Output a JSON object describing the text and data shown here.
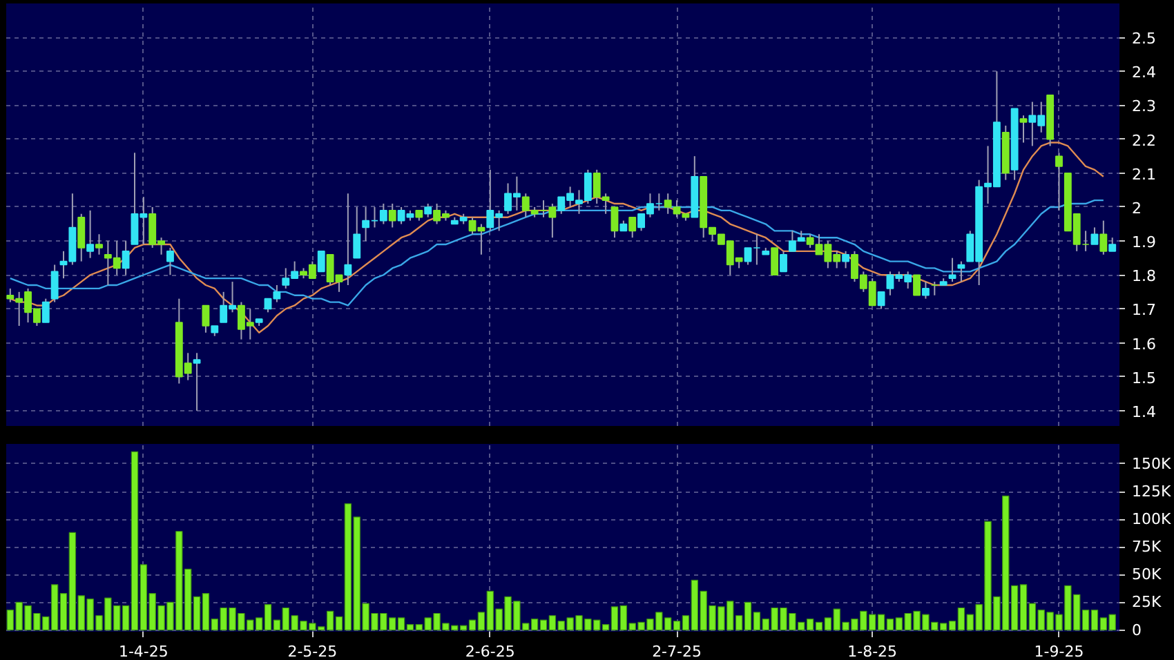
{
  "chart_data": [
    {
      "type": "candlestick",
      "categories": [
        null,
        null,
        null,
        null,
        null,
        null,
        null,
        null,
        null,
        null,
        null,
        null,
        null,
        null,
        null,
        null,
        null,
        null,
        null,
        null,
        null,
        null,
        null,
        null,
        null,
        null,
        null,
        null,
        null,
        null,
        null,
        null,
        null,
        null,
        null,
        null,
        null,
        null,
        null,
        null,
        null,
        null,
        null,
        null,
        null,
        null,
        null,
        null,
        null,
        null,
        null,
        null,
        null,
        null,
        null,
        null,
        null,
        null,
        null,
        null,
        null,
        null,
        null,
        null,
        null,
        null,
        null,
        null,
        null,
        null,
        null,
        null,
        null,
        null,
        null,
        null,
        null,
        null,
        null,
        null,
        null,
        null,
        null,
        null,
        null,
        null,
        null,
        null,
        null,
        null,
        null,
        null,
        null,
        null,
        null,
        null,
        null,
        null,
        null,
        null,
        null,
        null,
        null,
        null,
        null,
        null,
        null,
        null,
        null,
        null,
        null,
        null,
        null,
        null,
        null,
        null,
        null,
        null,
        null,
        null,
        null,
        null,
        null,
        null,
        null
      ],
      "ohlc": [
        [
          1.74,
          1.76,
          1.72,
          1.73
        ],
        [
          1.73,
          1.75,
          1.65,
          1.72
        ],
        [
          1.75,
          1.76,
          1.66,
          1.69
        ],
        [
          1.7,
          1.7,
          1.65,
          1.66
        ],
        [
          1.66,
          1.73,
          1.66,
          1.72
        ],
        [
          1.73,
          1.83,
          1.72,
          1.81
        ],
        [
          1.83,
          1.87,
          1.79,
          1.84
        ],
        [
          1.84,
          2.04,
          1.83,
          1.94
        ],
        [
          1.97,
          1.98,
          1.84,
          1.88
        ],
        [
          1.87,
          1.99,
          1.85,
          1.89
        ],
        [
          1.89,
          1.92,
          1.86,
          1.88
        ],
        [
          1.86,
          1.9,
          1.77,
          1.85
        ],
        [
          1.85,
          1.9,
          1.8,
          1.82
        ],
        [
          1.82,
          1.9,
          1.8,
          1.87
        ],
        [
          1.89,
          2.16,
          1.89,
          1.98
        ],
        [
          1.97,
          2.03,
          1.89,
          1.98
        ],
        [
          1.98,
          2.0,
          1.88,
          1.89
        ],
        [
          1.9,
          1.91,
          1.86,
          1.89
        ],
        [
          1.84,
          1.88,
          1.8,
          1.87
        ],
        [
          1.66,
          1.73,
          1.48,
          1.5
        ],
        [
          1.54,
          1.57,
          1.49,
          1.51
        ],
        [
          1.54,
          1.57,
          1.4,
          1.55
        ],
        [
          1.71,
          1.71,
          1.63,
          1.65
        ],
        [
          1.63,
          1.65,
          1.62,
          1.65
        ],
        [
          1.66,
          1.75,
          1.66,
          1.71
        ],
        [
          1.7,
          1.78,
          1.69,
          1.71
        ],
        [
          1.71,
          1.72,
          1.61,
          1.64
        ],
        [
          1.66,
          1.7,
          1.61,
          1.65
        ],
        [
          1.66,
          1.67,
          1.65,
          1.67
        ],
        [
          1.7,
          1.73,
          1.69,
          1.73
        ],
        [
          1.73,
          1.77,
          1.72,
          1.75
        ],
        [
          1.77,
          1.82,
          1.76,
          1.79
        ],
        [
          1.79,
          1.84,
          1.79,
          1.81
        ],
        [
          1.81,
          1.82,
          1.79,
          1.8
        ],
        [
          1.83,
          1.84,
          1.79,
          1.79
        ],
        [
          1.81,
          1.87,
          1.81,
          1.87
        ],
        [
          1.86,
          1.86,
          1.77,
          1.78
        ],
        [
          1.8,
          1.8,
          1.75,
          1.78
        ],
        [
          1.8,
          2.04,
          1.77,
          1.83
        ],
        [
          1.85,
          2.0,
          1.85,
          1.92
        ],
        [
          1.94,
          2.0,
          1.9,
          1.96
        ],
        [
          1.96,
          2.0,
          1.94,
          1.96
        ],
        [
          1.96,
          2.01,
          1.95,
          1.99
        ],
        [
          1.99,
          2.01,
          1.94,
          1.96
        ],
        [
          1.96,
          2.0,
          1.95,
          1.99
        ],
        [
          1.97,
          1.99,
          1.96,
          1.98
        ],
        [
          1.99,
          1.99,
          1.96,
          1.97
        ],
        [
          1.98,
          2.01,
          1.97,
          2.0
        ],
        [
          1.99,
          2.01,
          1.95,
          1.96
        ],
        [
          1.98,
          1.99,
          1.96,
          1.97
        ],
        [
          1.95,
          1.97,
          1.95,
          1.96
        ],
        [
          1.96,
          1.98,
          1.95,
          1.97
        ],
        [
          1.96,
          1.97,
          1.92,
          1.93
        ],
        [
          1.94,
          1.95,
          1.86,
          1.93
        ],
        [
          1.94,
          2.11,
          1.93,
          1.99
        ],
        [
          1.97,
          1.99,
          1.93,
          1.98
        ],
        [
          1.99,
          2.07,
          1.98,
          2.04
        ],
        [
          2.03,
          2.09,
          1.99,
          2.04
        ],
        [
          2.03,
          2.04,
          1.97,
          1.99
        ],
        [
          1.99,
          2.0,
          1.97,
          1.98
        ],
        [
          1.99,
          2.02,
          1.97,
          1.99
        ],
        [
          2.0,
          2.01,
          1.91,
          1.97
        ],
        [
          1.99,
          2.03,
          1.98,
          2.03
        ],
        [
          2.02,
          2.06,
          2.0,
          2.04
        ],
        [
          2.01,
          2.05,
          1.98,
          2.02
        ],
        [
          2.02,
          2.11,
          2.01,
          2.1
        ],
        [
          2.1,
          2.11,
          2.01,
          2.03
        ],
        [
          2.03,
          2.04,
          1.98,
          2.02
        ],
        [
          2.0,
          2.0,
          1.91,
          1.93
        ],
        [
          1.93,
          1.96,
          1.93,
          1.95
        ],
        [
          1.97,
          1.97,
          1.91,
          1.93
        ],
        [
          1.94,
          1.98,
          1.93,
          1.98
        ],
        [
          1.98,
          2.04,
          1.97,
          2.01
        ],
        [
          2.01,
          2.04,
          1.99,
          2.01
        ],
        [
          2.02,
          2.04,
          1.98,
          2.0
        ],
        [
          2.0,
          2.02,
          1.97,
          1.98
        ],
        [
          1.98,
          1.98,
          1.96,
          1.97
        ],
        [
          1.97,
          2.15,
          1.97,
          2.09
        ],
        [
          2.09,
          2.09,
          1.91,
          1.94
        ],
        [
          1.94,
          1.94,
          1.9,
          1.92
        ],
        [
          1.92,
          1.92,
          1.89,
          1.89
        ],
        [
          1.9,
          1.9,
          1.8,
          1.83
        ],
        [
          1.85,
          1.85,
          1.82,
          1.84
        ],
        [
          1.84,
          1.88,
          1.83,
          1.88
        ],
        [
          1.88,
          1.92,
          1.83,
          1.88
        ],
        [
          1.86,
          1.88,
          1.86,
          1.87
        ],
        [
          1.88,
          1.88,
          1.8,
          1.8
        ],
        [
          1.81,
          1.87,
          1.81,
          1.86
        ],
        [
          1.87,
          1.93,
          1.87,
          1.9
        ],
        [
          1.9,
          1.93,
          1.9,
          1.91
        ],
        [
          1.91,
          1.92,
          1.88,
          1.89
        ],
        [
          1.89,
          1.92,
          1.86,
          1.86
        ],
        [
          1.89,
          1.9,
          1.82,
          1.84
        ],
        [
          1.86,
          1.87,
          1.82,
          1.84
        ],
        [
          1.84,
          1.87,
          1.82,
          1.86
        ],
        [
          1.86,
          1.87,
          1.78,
          1.79
        ],
        [
          1.8,
          1.81,
          1.75,
          1.76
        ],
        [
          1.78,
          1.79,
          1.71,
          1.71
        ],
        [
          1.71,
          1.75,
          1.7,
          1.75
        ],
        [
          1.76,
          1.81,
          1.74,
          1.8
        ],
        [
          1.79,
          1.81,
          1.78,
          1.8
        ],
        [
          1.78,
          1.81,
          1.76,
          1.8
        ],
        [
          1.8,
          1.8,
          1.74,
          1.74
        ],
        [
          1.74,
          1.78,
          1.73,
          1.76
        ],
        [
          1.77,
          1.78,
          1.74,
          1.77
        ],
        [
          1.77,
          1.79,
          1.77,
          1.78
        ],
        [
          1.79,
          1.85,
          1.78,
          1.8
        ],
        [
          1.82,
          1.84,
          1.78,
          1.83
        ],
        [
          1.84,
          1.93,
          1.84,
          1.92
        ],
        [
          1.84,
          2.08,
          1.77,
          2.06
        ],
        [
          2.06,
          2.18,
          2.01,
          2.07
        ],
        [
          2.06,
          2.4,
          2.06,
          2.25
        ],
        [
          2.22,
          2.24,
          2.08,
          2.1
        ],
        [
          2.11,
          2.29,
          2.08,
          2.29
        ],
        [
          2.26,
          2.27,
          2.19,
          2.25
        ],
        [
          2.25,
          2.31,
          2.18,
          2.27
        ],
        [
          2.24,
          2.31,
          2.22,
          2.27
        ],
        [
          2.33,
          2.33,
          2.18,
          2.2
        ],
        [
          2.15,
          2.16,
          1.99,
          2.12
        ],
        [
          2.1,
          2.1,
          1.93,
          1.93
        ],
        [
          1.98,
          1.98,
          1.87,
          1.89
        ],
        [
          1.89,
          1.93,
          1.87,
          1.89
        ],
        [
          1.89,
          1.94,
          1.89,
          1.92
        ],
        [
          1.92,
          1.96,
          1.86,
          1.87
        ],
        [
          1.87,
          1.91,
          1.87,
          1.89
        ]
      ],
      "colors": [
        "#7ee823",
        "#7ee823",
        "#7ee823",
        "#7ee823",
        "#33e4f4",
        "#33e4f4",
        "#33e4f4",
        "#33e4f4",
        "#7ee823",
        "#33e4f4",
        "#7ee823",
        "#7ee823",
        "#7ee823",
        "#33e4f4",
        "#33e4f4",
        "#33e4f4",
        "#7ee823",
        "#7ee823",
        "#33e4f4",
        "#7ee823",
        "#7ee823",
        "#33e4f4",
        "#7ee823",
        "#33e4f4",
        "#33e4f4",
        "#33e4f4",
        "#7ee823",
        "#7ee823",
        "#33e4f4",
        "#33e4f4",
        "#33e4f4",
        "#33e4f4",
        "#33e4f4",
        "#7ee823",
        "#7ee823",
        "#33e4f4",
        "#7ee823",
        "#7ee823",
        "#33e4f4",
        "#33e4f4",
        "#33e4f4",
        "#33e4f4",
        "#33e4f4",
        "#7ee823",
        "#33e4f4",
        "#33e4f4",
        "#7ee823",
        "#33e4f4",
        "#7ee823",
        "#7ee823",
        "#33e4f4",
        "#33e4f4",
        "#7ee823",
        "#7ee823",
        "#33e4f4",
        "#33e4f4",
        "#33e4f4",
        "#33e4f4",
        "#7ee823",
        "#7ee823",
        "#7ee823",
        "#7ee823",
        "#33e4f4",
        "#33e4f4",
        "#33e4f4",
        "#33e4f4",
        "#7ee823",
        "#7ee823",
        "#7ee823",
        "#33e4f4",
        "#7ee823",
        "#33e4f4",
        "#33e4f4",
        "#33e4f4",
        "#7ee823",
        "#7ee823",
        "#7ee823",
        "#33e4f4",
        "#7ee823",
        "#7ee823",
        "#7ee823",
        "#7ee823",
        "#7ee823",
        "#33e4f4",
        "#33e4f4",
        "#33e4f4",
        "#7ee823",
        "#33e4f4",
        "#33e4f4",
        "#33e4f4",
        "#7ee823",
        "#7ee823",
        "#7ee823",
        "#7ee823",
        "#33e4f4",
        "#7ee823",
        "#7ee823",
        "#7ee823",
        "#33e4f4",
        "#33e4f4",
        "#33e4f4",
        "#33e4f4",
        "#7ee823",
        "#33e4f4",
        "#7ee823",
        "#33e4f4",
        "#33e4f4",
        "#33e4f4",
        "#33e4f4",
        "#33e4f4",
        "#33e4f4",
        "#33e4f4",
        "#7ee823",
        "#33e4f4",
        "#7ee823",
        "#33e4f4",
        "#33e4f4",
        "#7ee823",
        "#7ee823",
        "#7ee823",
        "#7ee823",
        "#7ee823",
        "#33e4f4",
        "#7ee823",
        "#33e4f4"
      ],
      "series": [
        {
          "type": "line",
          "color": "#e08c52",
          "values": [
            1.73,
            1.72,
            1.72,
            1.71,
            1.71,
            1.73,
            1.74,
            1.76,
            1.78,
            1.8,
            1.81,
            1.82,
            1.83,
            1.85,
            1.88,
            1.89,
            1.89,
            1.89,
            1.89,
            1.85,
            1.82,
            1.79,
            1.77,
            1.76,
            1.73,
            1.71,
            1.69,
            1.66,
            1.63,
            1.65,
            1.68,
            1.7,
            1.71,
            1.73,
            1.74,
            1.76,
            1.77,
            1.78,
            1.79,
            1.81,
            1.83,
            1.85,
            1.87,
            1.89,
            1.91,
            1.92,
            1.94,
            1.96,
            1.97,
            1.97,
            1.98,
            1.97,
            1.97,
            1.97,
            1.97,
            1.97,
            1.97,
            1.98,
            1.99,
            1.99,
            1.99,
            1.99,
            1.99,
            2.0,
            2.01,
            2.02,
            2.03,
            2.02,
            2.01,
            2.01,
            2.0,
            1.99,
            2.0,
            2.0,
            2.0,
            1.99,
            1.98,
            1.99,
            1.99,
            1.98,
            1.97,
            1.95,
            1.94,
            1.93,
            1.92,
            1.91,
            1.89,
            1.87,
            1.87,
            1.87,
            1.87,
            1.87,
            1.87,
            1.87,
            1.86,
            1.84,
            1.82,
            1.81,
            1.8,
            1.8,
            1.8,
            1.8,
            1.79,
            1.78,
            1.77,
            1.77,
            1.77,
            1.78,
            1.79,
            1.82,
            1.87,
            1.92,
            1.98,
            2.04,
            2.11,
            2.15,
            2.18,
            2.19,
            2.19,
            2.18,
            2.15,
            2.12,
            2.11,
            2.09,
            null
          ]
        },
        {
          "type": "line",
          "color": "#3aa8e8",
          "values": [
            1.79,
            1.78,
            1.77,
            1.77,
            1.76,
            1.76,
            1.76,
            1.76,
            1.76,
            1.76,
            1.76,
            1.77,
            1.77,
            1.78,
            1.79,
            1.8,
            1.81,
            1.82,
            1.83,
            1.82,
            1.81,
            1.8,
            1.79,
            1.79,
            1.79,
            1.79,
            1.79,
            1.78,
            1.77,
            1.77,
            1.75,
            1.75,
            1.74,
            1.74,
            1.73,
            1.73,
            1.72,
            1.72,
            1.71,
            1.74,
            1.77,
            1.79,
            1.8,
            1.82,
            1.83,
            1.85,
            1.86,
            1.87,
            1.89,
            1.89,
            1.9,
            1.91,
            1.92,
            1.92,
            1.93,
            1.94,
            1.95,
            1.96,
            1.97,
            1.98,
            1.98,
            1.99,
            1.99,
            1.99,
            1.99,
            1.99,
            1.99,
            1.99,
            1.99,
            1.99,
            1.99,
            2.0,
            2.0,
            2.0,
            2.0,
            2.0,
            2.0,
            2.0,
            2.0,
            2.0,
            1.99,
            1.99,
            1.98,
            1.97,
            1.96,
            1.95,
            1.93,
            1.93,
            1.93,
            1.92,
            1.92,
            1.91,
            1.91,
            1.91,
            1.9,
            1.89,
            1.87,
            1.86,
            1.85,
            1.84,
            1.84,
            1.84,
            1.83,
            1.82,
            1.82,
            1.81,
            1.81,
            1.81,
            1.81,
            1.82,
            1.83,
            1.84,
            1.87,
            1.89,
            1.92,
            1.95,
            1.98,
            2.0,
            2.0,
            2.01,
            2.01,
            2.01,
            2.02,
            2.02,
            null
          ]
        }
      ],
      "ylim": [
        1.355,
        2.6
      ],
      "yticks": [
        1.4,
        1.5,
        1.6,
        1.7,
        1.8,
        1.9,
        2,
        2.1,
        2.2,
        2.3,
        2.4,
        2.5
      ],
      "grid": true,
      "tick_labels": "y"
    },
    {
      "type": "bar",
      "categories": [
        null,
        null,
        null,
        null,
        null,
        null,
        null,
        null,
        null,
        null,
        null,
        null,
        null,
        null,
        null,
        "1-4-25",
        null,
        null,
        null,
        null,
        null,
        null,
        null,
        null,
        null,
        null,
        null,
        null,
        null,
        null,
        null,
        null,
        null,
        null,
        "2-5-25",
        null,
        null,
        null,
        null,
        null,
        null,
        null,
        null,
        null,
        null,
        null,
        null,
        null,
        null,
        null,
        null,
        null,
        null,
        null,
        "2-6-25",
        null,
        null,
        null,
        null,
        null,
        null,
        null,
        null,
        null,
        null,
        null,
        null,
        null,
        null,
        null,
        null,
        null,
        null,
        null,
        null,
        "2-7-25",
        null,
        null,
        null,
        null,
        null,
        null,
        null,
        null,
        null,
        null,
        null,
        null,
        null,
        null,
        null,
        null,
        null,
        null,
        null,
        null,
        null,
        "1-8-25",
        null,
        null,
        null,
        null,
        null,
        null,
        null,
        null,
        null,
        null,
        null,
        null,
        null,
        null,
        null,
        null,
        null,
        null,
        null,
        null,
        "1-9-25",
        null,
        null,
        null,
        null,
        null,
        null
      ],
      "values": [
        18000,
        25000,
        22000,
        15000,
        12000,
        41000,
        33000,
        88000,
        31000,
        28000,
        13000,
        29000,
        22000,
        22000,
        161000,
        59000,
        33000,
        22000,
        25000,
        89000,
        55000,
        30000,
        33000,
        10000,
        20000,
        20000,
        15000,
        9000,
        11000,
        23000,
        9000,
        20000,
        13000,
        8000,
        6000,
        3000,
        17000,
        12000,
        114000,
        102000,
        24000,
        15000,
        15000,
        11000,
        11000,
        5000,
        5000,
        11000,
        15000,
        6000,
        4000,
        4000,
        9000,
        16000,
        35000,
        19000,
        30000,
        26000,
        6000,
        10000,
        9000,
        13000,
        8000,
        11000,
        13000,
        10000,
        9000,
        5000,
        21000,
        22000,
        6000,
        7000,
        10000,
        16000,
        11000,
        8000,
        13000,
        45000,
        35000,
        22000,
        21000,
        26000,
        13000,
        25000,
        16000,
        10000,
        20000,
        20000,
        15000,
        7000,
        10000,
        7000,
        11000,
        19000,
        7000,
        10000,
        17000,
        14000,
        14000,
        10000,
        11000,
        15000,
        17000,
        14000,
        7000,
        6000,
        8000,
        20000,
        14000,
        23000,
        98000,
        30000,
        121000,
        40000,
        41000,
        24000,
        18000,
        16000,
        14000,
        40000,
        32000,
        18000,
        18000,
        11000,
        14000
      ],
      "color": "#77ee22",
      "ylim": [
        -1500,
        168000
      ],
      "yticks": [
        0,
        {
          "value": 25000,
          "label": "25K"
        },
        {
          "value": 50000,
          "label": "50K"
        },
        {
          "value": 75000,
          "label": "75K"
        },
        {
          "value": 100000,
          "label": "100K"
        },
        {
          "value": 125000,
          "label": "125K"
        },
        {
          "value": 150000,
          "label": "150K"
        }
      ],
      "grid": true
    }
  ]
}
